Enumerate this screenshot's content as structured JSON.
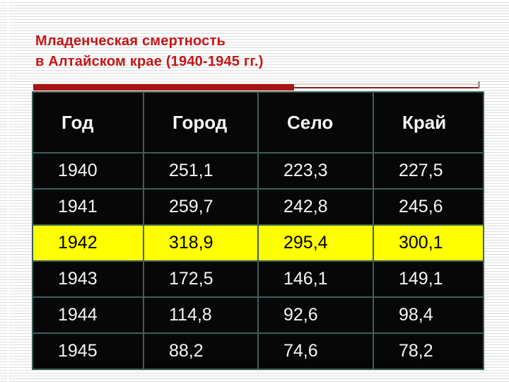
{
  "slide": {
    "title_line1": "Младенческая смертность",
    "title_line2": "в Алтайском крае (1940-1945 гг.)",
    "title_color": "#c41616",
    "accent_bar_color": "#a81414",
    "accent_line_light": "#e8caca",
    "accent_line_dark": "#7e2828"
  },
  "table": {
    "columns": [
      "Год",
      "Город",
      "Село",
      "Край"
    ],
    "rows": [
      {
        "cells": [
          "1940",
          "251,1",
          "223,3",
          "227,5"
        ],
        "highlighted": false
      },
      {
        "cells": [
          "1941",
          "259,7",
          "242,8",
          "245,6"
        ],
        "highlighted": false
      },
      {
        "cells": [
          "1942",
          "318,9",
          "295,4",
          "300,1"
        ],
        "highlighted": true
      },
      {
        "cells": [
          "1943",
          "172,5",
          "146,1",
          "149,1"
        ],
        "highlighted": false
      },
      {
        "cells": [
          "1944",
          "114,8",
          "92,6",
          "98,4"
        ],
        "highlighted": false
      },
      {
        "cells": [
          "1945",
          "88,2",
          "74,6",
          "78,2"
        ],
        "highlighted": false
      }
    ],
    "cell_background": "#070707",
    "border_color": "#3a605a",
    "text_color": "#f5f5f5",
    "highlight_color": "#ffff00",
    "highlight_text_color": "#000000"
  },
  "chart_data": {
    "type": "table",
    "title": "Младенческая смертность в Алтайском крае (1940-1945 гг.)",
    "columns": [
      "Год",
      "Город",
      "Село",
      "Край"
    ],
    "rows": [
      [
        "1940",
        251.1,
        223.3,
        227.5
      ],
      [
        "1941",
        259.7,
        242.8,
        245.6
      ],
      [
        "1942",
        318.9,
        295.4,
        300.1
      ],
      [
        "1943",
        172.5,
        146.1,
        149.1
      ],
      [
        "1944",
        114.8,
        92.6,
        98.4
      ],
      [
        "1945",
        88.2,
        74.6,
        78.2
      ]
    ],
    "highlighted_row": "1942",
    "note": "values are decimal-comma formatted in the slide"
  }
}
